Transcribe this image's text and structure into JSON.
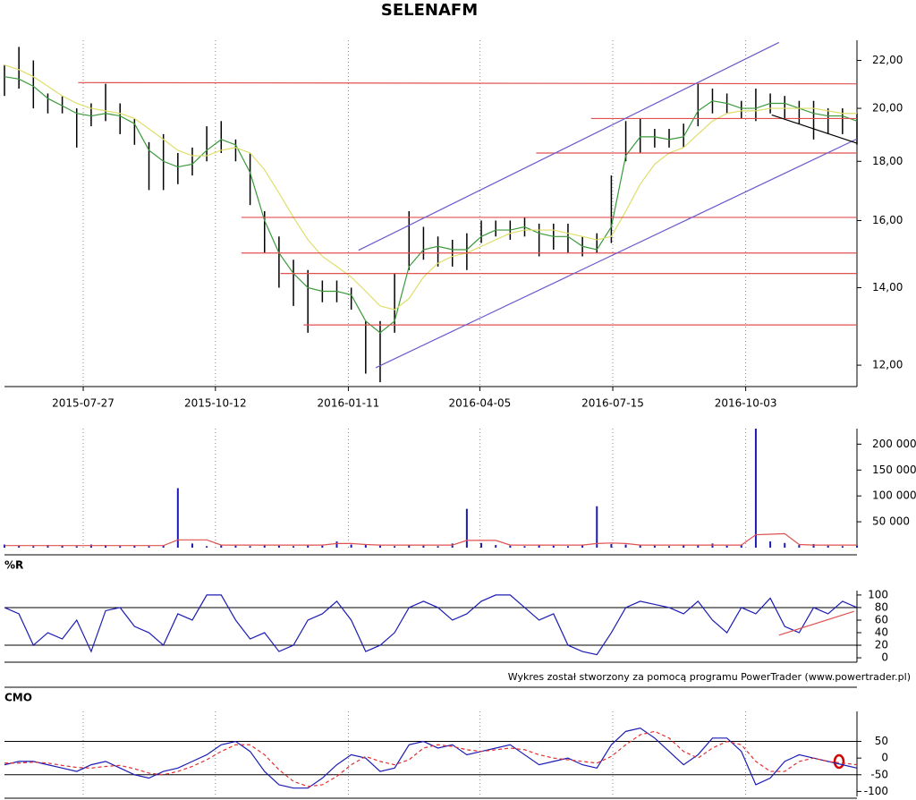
{
  "footer": "Wykres został stworzony za pomocą programu PowerTrader (www.powertrader.pl)",
  "chart_data": [
    {
      "type": "hilo",
      "title": "SELENAFM",
      "log": true,
      "grid": true,
      "x": [
        0,
        1,
        2,
        3,
        4,
        5,
        6,
        7,
        8,
        9,
        10,
        11,
        12,
        13,
        14,
        15,
        16,
        17,
        18,
        19,
        20,
        21,
        22,
        23,
        24,
        25,
        26,
        27,
        28,
        29,
        30,
        31,
        32,
        33,
        34,
        35,
        36,
        37,
        38,
        39,
        40,
        41,
        42,
        43,
        44,
        45,
        46,
        47,
        48,
        49,
        50,
        51,
        52,
        53,
        54,
        55,
        56,
        57,
        58,
        59
      ],
      "xlim": [
        0,
        59
      ],
      "xticks": [
        {
          "value": 5.45,
          "label": "2015-07-27"
        },
        {
          "value": 14.6,
          "label": "2015-10-12"
        },
        {
          "value": 23.8,
          "label": "2016-01-11"
        },
        {
          "value": 32.9,
          "label": "2016-04-05"
        },
        {
          "value": 42.1,
          "label": "2016-07-15"
        },
        {
          "value": 51.3,
          "label": "2016-10-03"
        }
      ],
      "ylim": [
        11.5,
        22.9
      ],
      "yticks": [
        {
          "value": 12,
          "label": "12,00"
        },
        {
          "value": 14,
          "label": "14,00"
        },
        {
          "value": 16,
          "label": "16,00"
        },
        {
          "value": 18,
          "label": "18,00"
        },
        {
          "value": 20,
          "label": "20,00"
        },
        {
          "value": 22,
          "label": "22,00"
        }
      ],
      "color": "#000000",
      "low": [
        20.5,
        20.8,
        20,
        19.8,
        19.8,
        18.5,
        19.3,
        19.5,
        19,
        18.6,
        17,
        17,
        17.2,
        17.5,
        18,
        18.3,
        18,
        16.5,
        15,
        14,
        13.5,
        12.8,
        13.6,
        13.6,
        13.4,
        11.8,
        11.6,
        12.8,
        14.5,
        14.8,
        14.6,
        14.6,
        14.5,
        15.3,
        15.5,
        15.4,
        15.5,
        14.9,
        15.1,
        15,
        14.9,
        15,
        15.3,
        18,
        18.3,
        18.5,
        18.5,
        18.5,
        19.3,
        19.8,
        19.8,
        19.6,
        19.5,
        19.8,
        19.6,
        19.4,
        18.8,
        19,
        19,
        18.6
      ],
      "high": [
        21.8,
        22.6,
        22,
        20.6,
        20.5,
        20,
        20.2,
        21,
        20.2,
        19.6,
        18.7,
        19,
        18.3,
        18.5,
        19.3,
        19.5,
        18.8,
        18.3,
        16.3,
        15.5,
        14.8,
        14.5,
        14.2,
        14.2,
        14,
        13.1,
        13.1,
        14.4,
        16.3,
        15.8,
        15.5,
        15.4,
        15.6,
        16,
        16,
        16,
        16.1,
        15.9,
        15.9,
        15.9,
        15.5,
        15.6,
        17.5,
        19.5,
        19.6,
        19.2,
        19.2,
        19.4,
        21,
        20.8,
        20.6,
        20.3,
        20.8,
        20.6,
        20.5,
        20.3,
        20.3,
        20,
        20,
        19.8
      ],
      "series": [
        {
          "color": "#3a9a3a",
          "values": [
            21.3,
            21.2,
            20.9,
            20.4,
            20.1,
            19.8,
            19.7,
            19.8,
            19.7,
            19.4,
            18.4,
            18.0,
            17.8,
            17.9,
            18.4,
            18.8,
            18.6,
            17.6,
            16.0,
            15.0,
            14.4,
            14.0,
            13.9,
            13.9,
            13.8,
            13.1,
            12.8,
            13.1,
            14.6,
            15.1,
            15.2,
            15.1,
            15.1,
            15.5,
            15.7,
            15.7,
            15.8,
            15.6,
            15.5,
            15.5,
            15.2,
            15.1,
            15.8,
            18.2,
            18.9,
            18.9,
            18.8,
            18.9,
            19.9,
            20.3,
            20.2,
            20.0,
            20.0,
            20.2,
            20.2,
            20.0,
            19.8,
            19.7,
            19.7,
            19.5
          ]
        },
        {
          "color": "#dede6a",
          "values": [
            21.8,
            21.6,
            21.3,
            20.9,
            20.5,
            20.2,
            20.0,
            19.9,
            19.8,
            19.6,
            19.2,
            18.8,
            18.4,
            18.2,
            18.2,
            18.4,
            18.5,
            18.3,
            17.7,
            16.9,
            16.1,
            15.4,
            14.9,
            14.6,
            14.3,
            13.9,
            13.5,
            13.4,
            13.7,
            14.3,
            14.7,
            14.9,
            15.0,
            15.2,
            15.4,
            15.6,
            15.7,
            15.7,
            15.7,
            15.6,
            15.5,
            15.4,
            15.5,
            16.3,
            17.2,
            17.9,
            18.3,
            18.5,
            19.0,
            19.5,
            19.8,
            19.9,
            19.9,
            20.0,
            20.0,
            20.0,
            20.0,
            19.9,
            19.8,
            19.8
          ]
        }
      ],
      "lines": [
        {
          "color": "#e05050",
          "x": [
            5.1,
            59
          ],
          "y": [
            21.05,
            21.0
          ]
        },
        {
          "color": "#e05050",
          "x": [
            40.6,
            59
          ],
          "y": [
            19.6,
            19.6
          ]
        },
        {
          "color": "#e05050",
          "x": [
            36.8,
            59
          ],
          "y": [
            18.3,
            18.3
          ]
        },
        {
          "color": "#e05050",
          "x": [
            16.4,
            59
          ],
          "y": [
            16.1,
            16.1
          ]
        },
        {
          "color": "#e05050",
          "x": [
            16.4,
            59
          ],
          "y": [
            15.0,
            15.0
          ]
        },
        {
          "color": "#e05050",
          "x": [
            19.1,
            59
          ],
          "y": [
            14.4,
            14.4
          ]
        },
        {
          "color": "#e05050",
          "x": [
            20.7,
            59
          ],
          "y": [
            13.0,
            13.0
          ]
        },
        {
          "color": "#6a5acd",
          "x": [
            24.5,
            53.6
          ],
          "y": [
            15.08,
            22.8
          ]
        },
        {
          "color": "#6a5acd",
          "x": [
            25.7,
            59
          ],
          "y": [
            11.94,
            18.82
          ]
        },
        {
          "color": "#000000",
          "x": [
            53.1,
            59
          ],
          "y": [
            19.74,
            18.66
          ]
        }
      ]
    },
    {
      "type": "bar",
      "grid": true,
      "x": [
        0,
        1,
        2,
        3,
        4,
        5,
        6,
        7,
        8,
        9,
        10,
        11,
        12,
        13,
        14,
        15,
        16,
        17,
        18,
        19,
        20,
        21,
        22,
        23,
        24,
        25,
        26,
        27,
        28,
        29,
        30,
        31,
        32,
        33,
        34,
        35,
        36,
        37,
        38,
        39,
        40,
        41,
        42,
        43,
        44,
        45,
        46,
        47,
        48,
        49,
        50,
        51,
        52,
        53,
        54,
        55,
        56,
        57,
        58,
        59
      ],
      "xlim": [
        0,
        59
      ],
      "xticks": [
        5.45,
        14.6,
        23.8,
        32.9,
        42.1,
        51.3
      ],
      "ylim": [
        0,
        230000
      ],
      "yticks": [
        {
          "value": 50000,
          "label": "50 000"
        },
        {
          "value": 100000,
          "label": "100 000"
        },
        {
          "value": 150000,
          "label": "150 000"
        },
        {
          "value": 200000,
          "label": "200 000"
        }
      ],
      "series": [
        {
          "color": "#1c1cb4",
          "style": "bar",
          "values": [
            6000,
            4000,
            3000,
            5000,
            4000,
            3000,
            6000,
            5000,
            3000,
            4000,
            3000,
            4000,
            115000,
            8000,
            3000,
            5000,
            4000,
            3000,
            6000,
            4000,
            3000,
            5000,
            4000,
            12000,
            6000,
            7000,
            4000,
            3000,
            5000,
            4000,
            3000,
            8000,
            75000,
            9000,
            5000,
            4000,
            3000,
            6000,
            4000,
            3000,
            5000,
            80000,
            7000,
            6000,
            5000,
            4000,
            3000,
            6000,
            5000,
            8000,
            4000,
            5000,
            230000,
            12000,
            9000,
            5000,
            7000,
            4000,
            3000,
            4000
          ]
        },
        {
          "color": "#e05050",
          "style": "line",
          "values": [
            4000,
            4000,
            4000,
            4000,
            4000,
            4000,
            4000,
            4000,
            4000,
            4000,
            4000,
            4000,
            15000,
            15000,
            15000,
            5000,
            5000,
            5000,
            5000,
            5000,
            5000,
            5000,
            5000,
            8000,
            8000,
            6000,
            5000,
            5000,
            5000,
            5000,
            5000,
            5000,
            14000,
            14000,
            14000,
            5000,
            5000,
            5000,
            5000,
            5000,
            5000,
            8000,
            9000,
            8000,
            5000,
            5000,
            5000,
            5000,
            5000,
            5000,
            5000,
            5000,
            25000,
            26000,
            27000,
            6000,
            5000,
            5000,
            5000,
            5000
          ]
        }
      ]
    },
    {
      "type": "line",
      "title": "%R",
      "x": [
        0,
        1,
        2,
        3,
        4,
        5,
        6,
        7,
        8,
        9,
        10,
        11,
        12,
        13,
        14,
        15,
        16,
        17,
        18,
        19,
        20,
        21,
        22,
        23,
        24,
        25,
        26,
        27,
        28,
        29,
        30,
        31,
        32,
        33,
        34,
        35,
        36,
        37,
        38,
        39,
        40,
        41,
        42,
        43,
        44,
        45,
        46,
        47,
        48,
        49,
        50,
        51,
        52,
        53,
        54,
        55,
        56,
        57,
        58,
        59
      ],
      "xlim": [
        0,
        59
      ],
      "ylim": [
        -7,
        107
      ],
      "yticks": [
        0,
        20,
        40,
        60,
        80,
        100
      ],
      "reference_lines": [
        80,
        20
      ],
      "series": [
        {
          "color": "#1c1cb4",
          "values": [
            80,
            70,
            20,
            40,
            30,
            60,
            10,
            75,
            80,
            50,
            40,
            20,
            70,
            60,
            100,
            100,
            60,
            30,
            40,
            10,
            20,
            60,
            70,
            90,
            60,
            10,
            20,
            40,
            80,
            90,
            80,
            60,
            70,
            90,
            100,
            100,
            80,
            60,
            70,
            20,
            10,
            5,
            40,
            80,
            90,
            85,
            80,
            70,
            90,
            60,
            40,
            80,
            70,
            95,
            50,
            40,
            80,
            70,
            90,
            80
          ]
        }
      ],
      "lines": [
        {
          "color": "#e05050",
          "x": [
            53.6,
            58.8
          ],
          "y": [
            36,
            74
          ]
        }
      ]
    },
    {
      "type": "line",
      "title": "CMO",
      "grid": true,
      "x": [
        0,
        1,
        2,
        3,
        4,
        5,
        6,
        7,
        8,
        9,
        10,
        11,
        12,
        13,
        14,
        15,
        16,
        17,
        18,
        19,
        20,
        21,
        22,
        23,
        24,
        25,
        26,
        27,
        28,
        29,
        30,
        31,
        32,
        33,
        34,
        35,
        36,
        37,
        38,
        39,
        40,
        41,
        42,
        43,
        44,
        45,
        46,
        47,
        48,
        49,
        50,
        51,
        52,
        53,
        54,
        55,
        56,
        57,
        58,
        59
      ],
      "xlim": [
        0,
        59
      ],
      "xticks": [
        5.45,
        14.6,
        23.8,
        32.9,
        42.1,
        51.3
      ],
      "ylim": [
        -115,
        140
      ],
      "yticks": [
        -100,
        -50,
        0,
        50
      ],
      "reference_lines": [
        50,
        -50
      ],
      "series": [
        {
          "color": "#1c1cb4",
          "values": [
            -20,
            -10,
            -10,
            -20,
            -30,
            -40,
            -20,
            -10,
            -30,
            -50,
            -60,
            -40,
            -30,
            -10,
            10,
            40,
            50,
            20,
            -40,
            -80,
            -90,
            -90,
            -60,
            -20,
            10,
            0,
            -40,
            -30,
            40,
            50,
            30,
            40,
            10,
            20,
            30,
            40,
            10,
            -20,
            -10,
            0,
            -20,
            -30,
            40,
            80,
            90,
            60,
            20,
            -20,
            10,
            60,
            60,
            20,
            -80,
            -60,
            -10,
            10,
            0,
            -10,
            -20,
            -30
          ]
        },
        {
          "color": "#e03030",
          "dash": true,
          "values": [
            -15,
            -15,
            -12,
            -15,
            -22,
            -28,
            -30,
            -25,
            -22,
            -32,
            -45,
            -50,
            -40,
            -25,
            -5,
            20,
            40,
            40,
            10,
            -35,
            -70,
            -85,
            -80,
            -55,
            -20,
            5,
            -10,
            -20,
            -5,
            30,
            40,
            35,
            25,
            20,
            25,
            30,
            25,
            10,
            0,
            -5,
            -10,
            -15,
            5,
            40,
            70,
            80,
            60,
            20,
            0,
            30,
            50,
            40,
            -10,
            -40,
            -40,
            -10,
            0,
            -10,
            -15,
            -20
          ]
        }
      ]
    }
  ]
}
